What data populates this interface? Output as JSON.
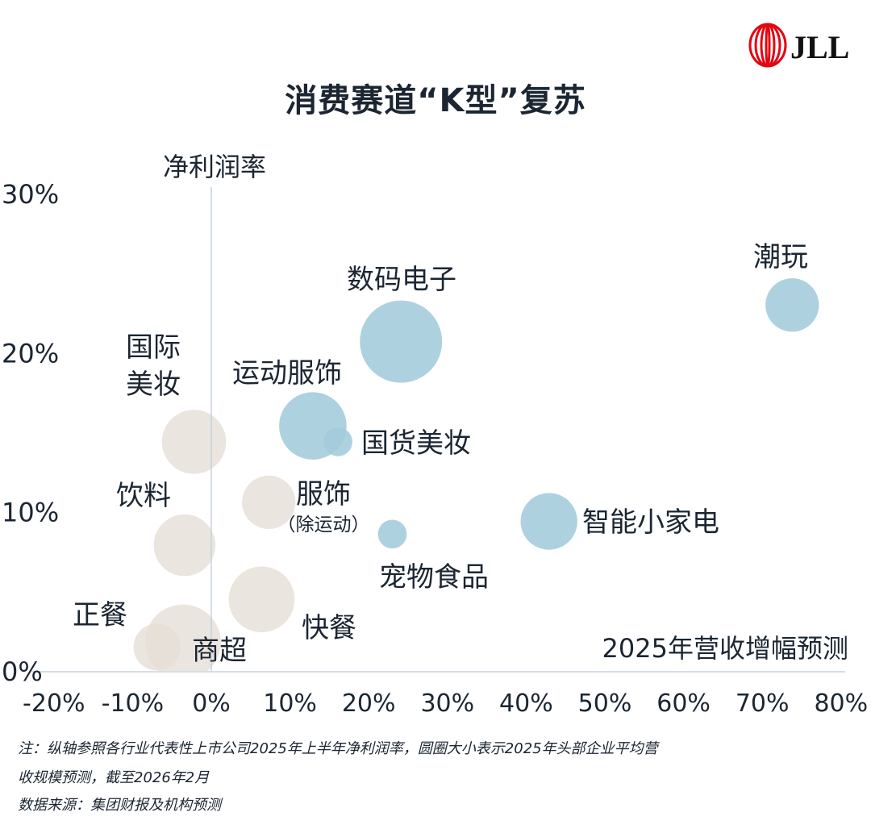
{
  "title": "消费赛道“K型”复苏",
  "logo_text": "JLL",
  "colors": {
    "recovering": "#a3cbdc",
    "lagging": "#e6dfd7",
    "axis": "#c5d3de",
    "text": "#1b2632",
    "logo_red": "#e30613"
  },
  "chart_data": {
    "type": "scatter",
    "variant": "bubble",
    "xlabel": "2025年营收增幅预测",
    "ylabel": "净利润率",
    "xlim": [
      -20,
      80
    ],
    "ylim": [
      0,
      30
    ],
    "x_ticks": [
      "-20%",
      "-10%",
      "0%",
      "10%",
      "20%",
      "30%",
      "40%",
      "50%",
      "60%",
      "70%",
      "80%"
    ],
    "y_ticks": [
      "0%",
      "10%",
      "20%",
      "30%"
    ],
    "grid": false,
    "points": [
      {
        "label": "潮玩",
        "x": 73.8,
        "y": 23.0,
        "size_relative": 0.65,
        "group": "recovering"
      },
      {
        "label": "数码电子",
        "x": 24.1,
        "y": 20.7,
        "size_relative": 1.0,
        "group": "recovering"
      },
      {
        "label": "运动服饰",
        "x": 12.9,
        "y": 15.4,
        "size_relative": 0.82,
        "group": "recovering"
      },
      {
        "label": "国货美妆",
        "x": 16.1,
        "y": 14.4,
        "size_relative": 0.35,
        "group": "recovering"
      },
      {
        "label": "智能小家电",
        "x": 42.9,
        "y": 9.4,
        "size_relative": 0.69,
        "group": "recovering"
      },
      {
        "label": "宠物食品",
        "x": 23.0,
        "y": 8.6,
        "size_relative": 0.35,
        "group": "recovering"
      },
      {
        "label": "国际美妆",
        "x": -2.2,
        "y": 14.4,
        "size_relative": 0.78,
        "group": "lagging"
      },
      {
        "label": "饮料",
        "x": -3.4,
        "y": 7.9,
        "size_relative": 0.75,
        "group": "lagging"
      },
      {
        "label": "服饰",
        "sublabel": "（除运动）",
        "x": 7.3,
        "y": 10.6,
        "size_relative": 0.65,
        "group": "lagging"
      },
      {
        "label": "快餐",
        "x": 6.4,
        "y": 4.5,
        "size_relative": 0.8,
        "group": "lagging"
      },
      {
        "label": "正餐",
        "x": -6.9,
        "y": 1.5,
        "size_relative": 0.57,
        "group": "lagging"
      },
      {
        "label": "商超",
        "x": -3.6,
        "y": 1.8,
        "size_relative": 0.92,
        "group": "lagging"
      }
    ]
  },
  "notes": {
    "line1": "注：纵轴参照各行业代表性上市公司2025年上半年净利润率，圆圈大小表示2025年头部企业平均营",
    "line2": "收规模预测，截至2026年2月",
    "source": "数据来源：集团财报及机构预测"
  }
}
